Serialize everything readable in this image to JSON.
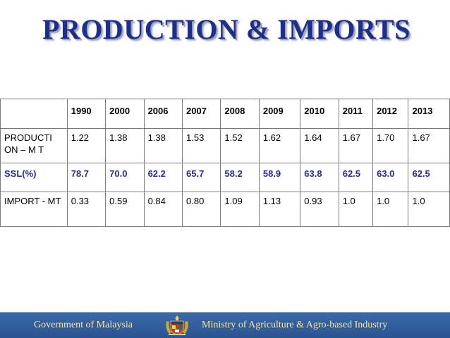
{
  "slide": {
    "title": "PRODUCTION & IMPORTS"
  },
  "table": {
    "corner": "",
    "years": [
      "1990",
      "2000",
      "2006",
      "2007",
      "2008",
      "2009",
      "2010",
      "2011",
      "2012",
      "2013"
    ],
    "rows": [
      {
        "label": "PRODUCTI ON – M T",
        "values": [
          "1.22",
          "1.38",
          "1.38",
          "1.53",
          "1.52",
          "1.62",
          "1.64",
          "1.67",
          "1.70",
          "1.67"
        ]
      },
      {
        "label": "SSL(%)",
        "values": [
          "78.7",
          "70.0",
          "62.2",
          "65.7",
          "58.2",
          "58.9",
          "63.8",
          "62.5",
          "63.0",
          "62.5"
        ]
      },
      {
        "label": "IMPORT - MT",
        "values": [
          "0.33",
          "0.59",
          "0.84",
          "0.80",
          "1.09",
          "1.13",
          "0.93",
          "1.0",
          "1.0",
          "1.0"
        ]
      }
    ]
  },
  "footer": {
    "left": "Government of Malaysia",
    "right": "Ministry of Agriculture & Agro-based Industry",
    "crest_icon": "malaysia-coat-of-arms-icon"
  },
  "colors": {
    "title": "#1f2f86",
    "ssl_row": "#2b2c8f",
    "footer_bg": "#2f5a97",
    "footer_text": "#f5e7a6"
  }
}
